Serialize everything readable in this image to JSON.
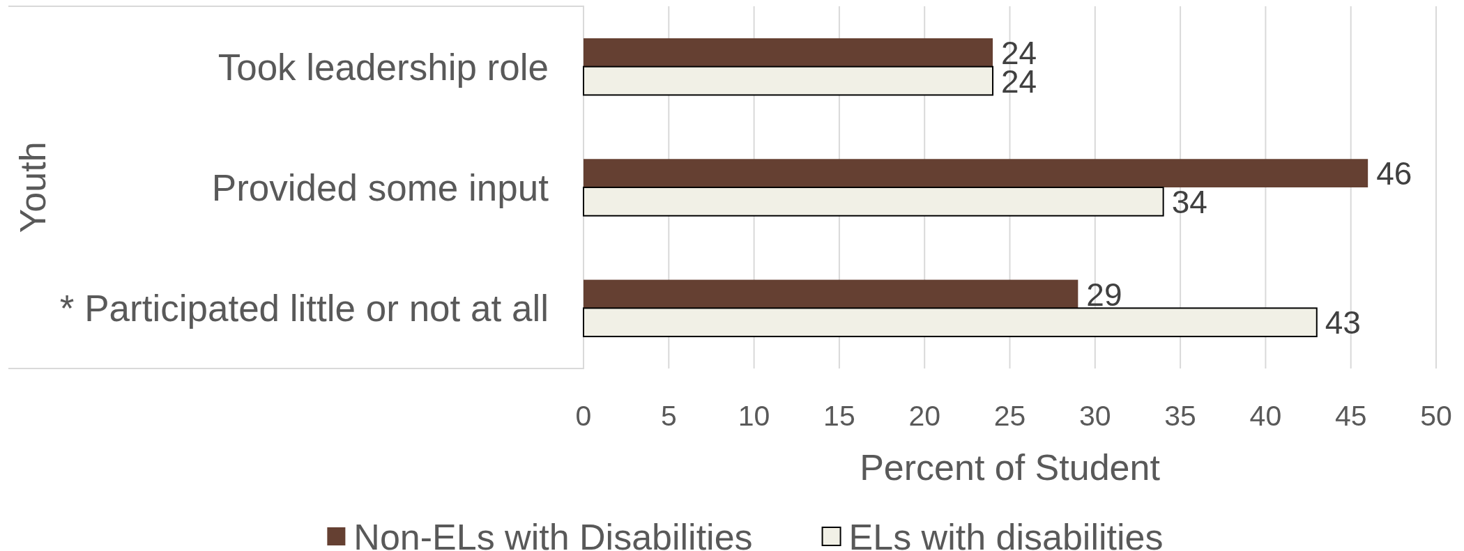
{
  "chart_data": {
    "type": "bar",
    "orientation": "horizontal",
    "categories": [
      "Took leadership role",
      "Provided some input",
      "* Participated little or not at all"
    ],
    "series": [
      {
        "name": "Non-ELs with Disabilities",
        "color": "#654032",
        "values": [
          24,
          46,
          29
        ]
      },
      {
        "name": "ELs with disabilities",
        "color": "#f1f0e6",
        "values": [
          24,
          34,
          43
        ]
      }
    ],
    "xlabel": "Percent of Student",
    "ylabel": "Youth",
    "xlim": [
      0,
      50
    ],
    "xticks": [
      0,
      5,
      10,
      15,
      20,
      25,
      30,
      35,
      40,
      45,
      50
    ],
    "grid": "x",
    "legend": "bottom",
    "data_labels": true
  }
}
